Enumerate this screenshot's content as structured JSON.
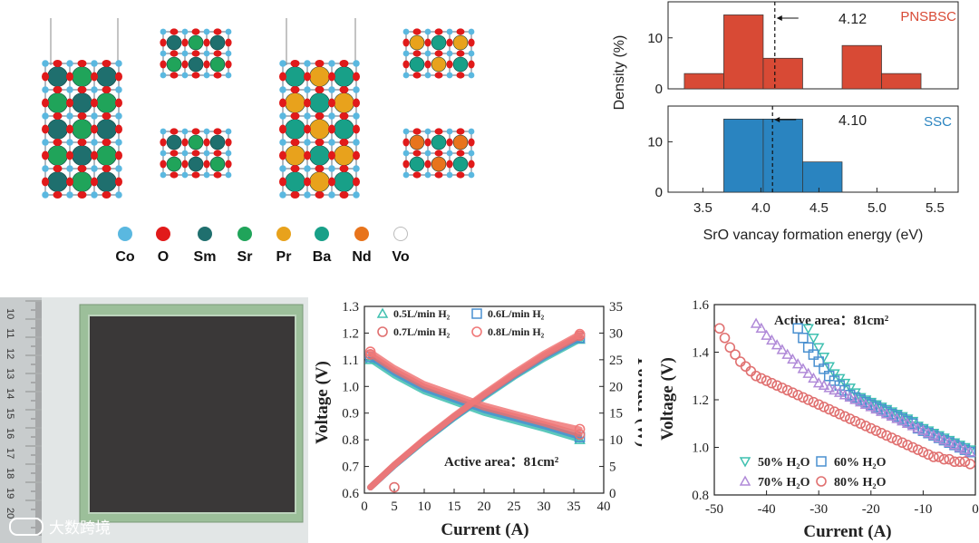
{
  "legend": {
    "items": [
      {
        "label": "Co",
        "color": "#5ab8e0"
      },
      {
        "label": "O",
        "color": "#e11a1a"
      },
      {
        "label": "Sm",
        "color": "#1f6f6e"
      },
      {
        "label": "Sr",
        "color": "#20a45a"
      },
      {
        "label": "Pr",
        "color": "#e8a21c"
      },
      {
        "label": "Ba",
        "color": "#18a088"
      },
      {
        "label": "Nd",
        "color": "#e8741c"
      },
      {
        "label": "Vo",
        "color": "#ffffff"
      }
    ]
  },
  "photo": {
    "ruler_numbers": [
      "10",
      "11",
      "12",
      "13",
      "14",
      "15",
      "16",
      "17",
      "18",
      "19",
      "20"
    ]
  },
  "watermark": {
    "text": "大数跨境"
  },
  "chart_data": [
    {
      "type": "bar",
      "panel": "PNSBSC",
      "label": "PNSBSC",
      "color": "#d84a35",
      "bins": [
        [
          3.34,
          3.68,
          3
        ],
        [
          3.68,
          4.02,
          14.5
        ],
        [
          4.02,
          4.36,
          6
        ],
        [
          4.7,
          5.04,
          8.5
        ],
        [
          5.04,
          5.38,
          3
        ]
      ],
      "mean_line": 4.12,
      "mean_label": "4.12",
      "yticks": [
        "0",
        "10"
      ],
      "ylim": [
        0,
        16
      ]
    },
    {
      "type": "bar",
      "panel": "SSC",
      "label": "SSC",
      "color": "#2a84c0",
      "bins": [
        [
          3.68,
          4.02,
          14.5
        ],
        [
          4.02,
          4.36,
          14.5
        ],
        [
          4.36,
          4.7,
          6
        ]
      ],
      "mean_line": 4.1,
      "mean_label": "4.10",
      "yticks": [
        "0",
        "10"
      ],
      "ylim": [
        0,
        16
      ],
      "xlabel": "SrO vancay formation energy (eV)",
      "ylabel": "Density (%)",
      "xlim": [
        3.2,
        5.7
      ],
      "xticks": [
        "3.5",
        "4.0",
        "4.5",
        "5.0",
        "5.5"
      ]
    },
    {
      "type": "line",
      "panel": "iv",
      "title": "Active area：81cm²",
      "xlabel": "Current (A)",
      "ylabel": "Voltage (V)",
      "y2label": "Powder (W)",
      "xlim": [
        0,
        40
      ],
      "ylim": [
        0.6,
        1.3
      ],
      "y2lim": [
        0,
        35
      ],
      "xticks": [
        "0",
        "5",
        "10",
        "15",
        "20",
        "25",
        "30",
        "35",
        "40"
      ],
      "yticks": [
        "0.6",
        "0.7",
        "0.8",
        "0.9",
        "1.0",
        "1.1",
        "1.2",
        "1.3"
      ],
      "y2ticks": [
        "0",
        "5",
        "10",
        "15",
        "20",
        "25",
        "30",
        "35"
      ],
      "series": [
        {
          "name": "0.5L/min H₂",
          "marker": "triangle",
          "color": "#3fc0b0",
          "voltage": [
            [
              1,
              1.1
            ],
            [
              5,
              1.04
            ],
            [
              10,
              0.98
            ],
            [
              15,
              0.94
            ],
            [
              20,
              0.9
            ],
            [
              25,
              0.87
            ],
            [
              30,
              0.84
            ],
            [
              36,
              0.8
            ]
          ],
          "power": [
            [
              1,
              1.1
            ],
            [
              5,
              5.2
            ],
            [
              10,
              9.8
            ],
            [
              15,
              14.1
            ],
            [
              20,
              18
            ],
            [
              25,
              21.8
            ],
            [
              30,
              25.2
            ],
            [
              36,
              28.8
            ]
          ]
        },
        {
          "name": "0.6L/min H₂",
          "marker": "square",
          "color": "#4a90d0",
          "voltage": [
            [
              1,
              1.11
            ],
            [
              5,
              1.05
            ],
            [
              10,
              0.99
            ],
            [
              15,
              0.95
            ],
            [
              20,
              0.91
            ],
            [
              25,
              0.88
            ],
            [
              30,
              0.85
            ],
            [
              36,
              0.81
            ]
          ],
          "power": [
            [
              1,
              1.1
            ],
            [
              5,
              5.2
            ],
            [
              10,
              9.9
            ],
            [
              15,
              14.2
            ],
            [
              20,
              18.2
            ],
            [
              25,
              22
            ],
            [
              30,
              25.5
            ],
            [
              36,
              29.1
            ]
          ]
        },
        {
          "name": "0.7L/min H₂",
          "marker": "circle",
          "color": "#e07070",
          "voltage": [
            [
              1,
              1.12
            ],
            [
              5,
              1.06
            ],
            [
              10,
              1.0
            ],
            [
              15,
              0.96
            ],
            [
              20,
              0.92
            ],
            [
              25,
              0.89
            ],
            [
              30,
              0.86
            ],
            [
              36,
              0.82
            ]
          ],
          "power": [
            [
              1,
              1.1
            ],
            [
              5,
              5.3
            ],
            [
              10,
              10
            ],
            [
              15,
              14.4
            ],
            [
              20,
              18.4
            ],
            [
              25,
              22.2
            ],
            [
              30,
              25.8
            ],
            [
              36,
              29.5
            ]
          ]
        },
        {
          "name": "0.8L/min H₂",
          "marker": "circle",
          "color": "#f07878",
          "voltage": [
            [
              1,
              1.13
            ],
            [
              5,
              1.07
            ],
            [
              10,
              1.01
            ],
            [
              15,
              0.97
            ],
            [
              20,
              0.93
            ],
            [
              25,
              0.9
            ],
            [
              30,
              0.87
            ],
            [
              36,
              0.84
            ]
          ],
          "power": [
            [
              1,
              1.1
            ],
            [
              5,
              5.3
            ],
            [
              10,
              10.1
            ],
            [
              15,
              14.5
            ],
            [
              20,
              18.6
            ],
            [
              25,
              22.5
            ],
            [
              30,
              26.1
            ],
            [
              36,
              29.8
            ]
          ]
        }
      ]
    },
    {
      "type": "scatter",
      "panel": "h2o",
      "title": "Active area：81cm²",
      "xlabel": "Current (A)",
      "ylabel": "Voltage (V)",
      "xlim": [
        -50,
        0
      ],
      "ylim": [
        0.8,
        1.6
      ],
      "xticks": [
        "-50",
        "-40",
        "-30",
        "-20",
        "-10",
        "0"
      ],
      "yticks": [
        "0.8",
        "1.0",
        "1.2",
        "1.4",
        "1.6"
      ],
      "series": [
        {
          "name": "50% H₂O",
          "marker": "triangle-down",
          "color": "#3fc0b0",
          "points": [
            [
              -32,
              1.5
            ],
            [
              -31,
              1.46
            ],
            [
              -30,
              1.42
            ],
            [
              -29,
              1.38
            ],
            [
              -28,
              1.34
            ],
            [
              -27,
              1.31
            ],
            [
              -26,
              1.29
            ],
            [
              -25,
              1.27
            ],
            [
              -24,
              1.25
            ],
            [
              -23,
              1.23
            ],
            [
              -22,
              1.21
            ],
            [
              -21,
              1.2
            ],
            [
              -20,
              1.19
            ],
            [
              -19,
              1.18
            ],
            [
              -18,
              1.17
            ],
            [
              -17,
              1.16
            ],
            [
              -16,
              1.15
            ],
            [
              -15,
              1.14
            ],
            [
              -14,
              1.13
            ],
            [
              -13,
              1.12
            ],
            [
              -12,
              1.11
            ],
            [
              -11,
              1.09
            ],
            [
              -10,
              1.08
            ],
            [
              -9,
              1.07
            ],
            [
              -8,
              1.06
            ],
            [
              -7,
              1.05
            ],
            [
              -6,
              1.04
            ],
            [
              -5,
              1.03
            ],
            [
              -4,
              1.02
            ],
            [
              -3,
              1.01
            ],
            [
              -2,
              1.0
            ],
            [
              -1,
              0.99
            ]
          ]
        },
        {
          "name": "60% H₂O",
          "marker": "square",
          "color": "#4a90d0",
          "points": [
            [
              -34,
              1.5
            ],
            [
              -33,
              1.46
            ],
            [
              -32,
              1.42
            ],
            [
              -31,
              1.39
            ],
            [
              -30,
              1.36
            ],
            [
              -29,
              1.33
            ],
            [
              -28,
              1.3
            ],
            [
              -27,
              1.28
            ],
            [
              -26,
              1.26
            ],
            [
              -25,
              1.24
            ],
            [
              -24,
              1.22
            ],
            [
              -23,
              1.21
            ],
            [
              -22,
              1.2
            ],
            [
              -21,
              1.19
            ],
            [
              -20,
              1.18
            ],
            [
              -19,
              1.17
            ],
            [
              -18,
              1.16
            ],
            [
              -17,
              1.15
            ],
            [
              -16,
              1.14
            ],
            [
              -15,
              1.13
            ],
            [
              -14,
              1.12
            ],
            [
              -13,
              1.11
            ],
            [
              -12,
              1.1
            ],
            [
              -11,
              1.08
            ],
            [
              -10,
              1.07
            ],
            [
              -9,
              1.06
            ],
            [
              -8,
              1.05
            ],
            [
              -7,
              1.04
            ],
            [
              -6,
              1.03
            ],
            [
              -5,
              1.02
            ],
            [
              -4,
              1.01
            ],
            [
              -3,
              1.0
            ],
            [
              -2,
              0.99
            ],
            [
              -1,
              0.98
            ]
          ]
        },
        {
          "name": "70% H₂O",
          "marker": "triangle",
          "color": "#b08ad8",
          "points": [
            [
              -42,
              1.52
            ],
            [
              -41,
              1.5
            ],
            [
              -40,
              1.47
            ],
            [
              -39,
              1.45
            ],
            [
              -38,
              1.43
            ],
            [
              -37,
              1.41
            ],
            [
              -36,
              1.39
            ],
            [
              -35,
              1.37
            ],
            [
              -34,
              1.35
            ],
            [
              -33,
              1.33
            ],
            [
              -32,
              1.31
            ],
            [
              -31,
              1.29
            ],
            [
              -30,
              1.27
            ],
            [
              -29,
              1.26
            ],
            [
              -28,
              1.25
            ],
            [
              -27,
              1.24
            ],
            [
              -26,
              1.23
            ],
            [
              -25,
              1.22
            ],
            [
              -24,
              1.21
            ],
            [
              -23,
              1.2
            ],
            [
              -22,
              1.19
            ],
            [
              -21,
              1.18
            ],
            [
              -20,
              1.17
            ],
            [
              -19,
              1.16
            ],
            [
              -18,
              1.15
            ],
            [
              -17,
              1.14
            ],
            [
              -16,
              1.13
            ],
            [
              -15,
              1.12
            ],
            [
              -14,
              1.11
            ],
            [
              -13,
              1.1
            ],
            [
              -12,
              1.09
            ],
            [
              -11,
              1.08
            ],
            [
              -10,
              1.07
            ],
            [
              -9,
              1.06
            ],
            [
              -8,
              1.05
            ],
            [
              -7,
              1.04
            ],
            [
              -6,
              1.03
            ],
            [
              -5,
              1.02
            ],
            [
              -4,
              1.01
            ],
            [
              -3,
              1.0
            ],
            [
              -2,
              0.99
            ],
            [
              -1,
              0.98
            ]
          ]
        },
        {
          "name": "80% H₂O",
          "marker": "circle",
          "color": "#e07070",
          "points": [
            [
              -49,
              1.5
            ],
            [
              -48,
              1.46
            ],
            [
              -47,
              1.42
            ],
            [
              -46,
              1.39
            ],
            [
              -45,
              1.36
            ],
            [
              -44,
              1.34
            ],
            [
              -43,
              1.32
            ],
            [
              -42,
              1.3
            ],
            [
              -41,
              1.29
            ],
            [
              -40,
              1.28
            ],
            [
              -39,
              1.27
            ],
            [
              -38,
              1.26
            ],
            [
              -37,
              1.25
            ],
            [
              -36,
              1.24
            ],
            [
              -35,
              1.23
            ],
            [
              -34,
              1.22
            ],
            [
              -33,
              1.21
            ],
            [
              -32,
              1.2
            ],
            [
              -31,
              1.19
            ],
            [
              -30,
              1.18
            ],
            [
              -29,
              1.17
            ],
            [
              -28,
              1.16
            ],
            [
              -27,
              1.15
            ],
            [
              -26,
              1.14
            ],
            [
              -25,
              1.13
            ],
            [
              -24,
              1.12
            ],
            [
              -23,
              1.11
            ],
            [
              -22,
              1.1
            ],
            [
              -21,
              1.09
            ],
            [
              -20,
              1.08
            ],
            [
              -19,
              1.07
            ],
            [
              -18,
              1.06
            ],
            [
              -17,
              1.05
            ],
            [
              -16,
              1.04
            ],
            [
              -15,
              1.03
            ],
            [
              -14,
              1.02
            ],
            [
              -13,
              1.01
            ],
            [
              -12,
              1.0
            ],
            [
              -11,
              0.99
            ],
            [
              -10,
              0.98
            ],
            [
              -9,
              0.97
            ],
            [
              -8,
              0.96
            ],
            [
              -7,
              0.96
            ],
            [
              -6,
              0.95
            ],
            [
              -5,
              0.95
            ],
            [
              -4,
              0.94
            ],
            [
              -3,
              0.94
            ],
            [
              -2,
              0.94
            ],
            [
              -1,
              0.93
            ]
          ]
        }
      ]
    }
  ]
}
